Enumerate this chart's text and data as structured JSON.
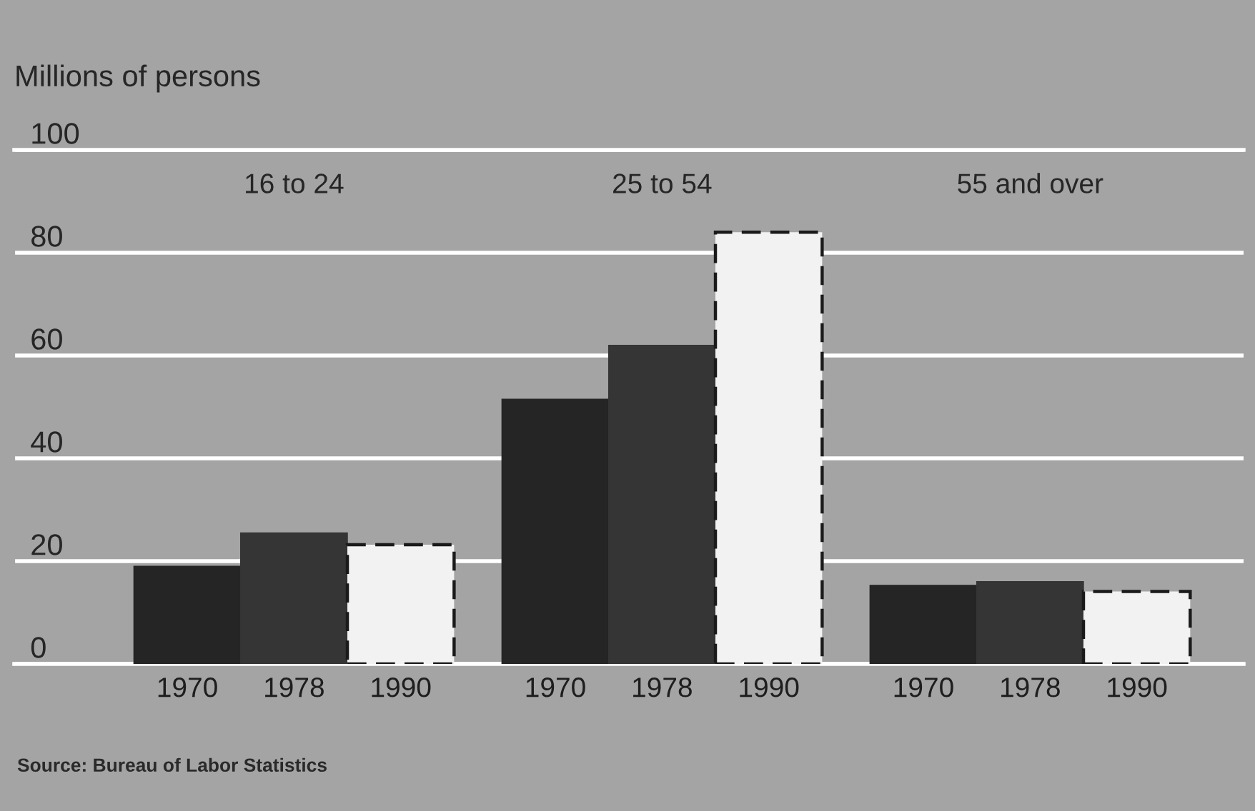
{
  "chart_data": {
    "type": "bar",
    "ylabel": "Millions of persons",
    "categories": [
      "16 to 24",
      "25 to 54",
      "55 and over"
    ],
    "series": [
      {
        "name": "1970",
        "color": "#252525",
        "values": [
          19,
          51.5,
          15.3
        ]
      },
      {
        "name": "1978",
        "color": "#353535",
        "values": [
          25.5,
          62,
          16
        ]
      },
      {
        "name": "1990",
        "color": "#f2f2f2",
        "line_style": "dashed",
        "values": [
          23.2,
          84,
          14.1
        ]
      }
    ],
    "ylim": [
      0,
      100
    ],
    "yticks": [
      0,
      20,
      40,
      60,
      80,
      100
    ],
    "grid": "y",
    "legend": false,
    "annotations": [
      "Source: Bureau of Labor Statistics"
    ]
  }
}
